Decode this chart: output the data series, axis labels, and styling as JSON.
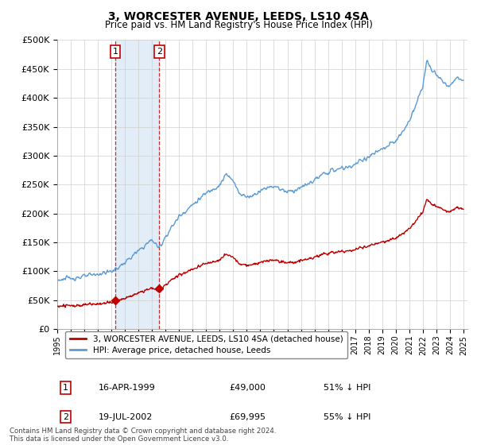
{
  "title": "3, WORCESTER AVENUE, LEEDS, LS10 4SA",
  "subtitle": "Price paid vs. HM Land Registry's House Price Index (HPI)",
  "ylim": [
    0,
    500000
  ],
  "yticks": [
    0,
    50000,
    100000,
    150000,
    200000,
    250000,
    300000,
    350000,
    400000,
    450000,
    500000
  ],
  "ytick_labels": [
    "£0",
    "£50K",
    "£100K",
    "£150K",
    "£200K",
    "£250K",
    "£300K",
    "£350K",
    "£400K",
    "£450K",
    "£500K"
  ],
  "hpi_color": "#5b9bd5",
  "price_color": "#c00000",
  "purchase1_date": 1999.29,
  "purchase1_price": 49000,
  "purchase2_date": 2002.54,
  "purchase2_price": 69995,
  "legend_label_price": "3, WORCESTER AVENUE, LEEDS, LS10 4SA (detached house)",
  "legend_label_hpi": "HPI: Average price, detached house, Leeds",
  "annotation1_label": "1",
  "annotation1_date": "16-APR-1999",
  "annotation1_price": "£49,000",
  "annotation1_pct": "51% ↓ HPI",
  "annotation2_label": "2",
  "annotation2_date": "19-JUL-2002",
  "annotation2_price": "£69,995",
  "annotation2_pct": "55% ↓ HPI",
  "footnote": "Contains HM Land Registry data © Crown copyright and database right 2024.\nThis data is licensed under the Open Government Licence v3.0.",
  "background_color": "#ffffff",
  "grid_color": "#d0d0d0",
  "shade_color": "#dce9f5"
}
